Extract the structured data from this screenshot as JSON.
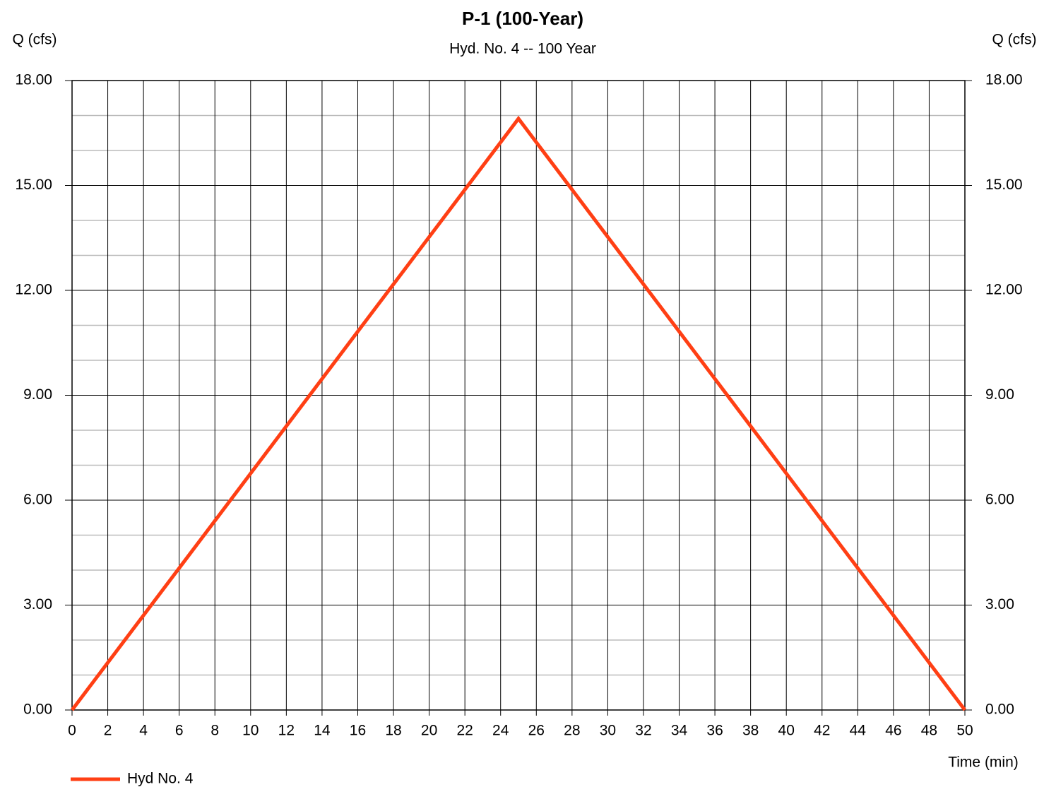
{
  "chart_data": {
    "type": "line",
    "title": "P-1 (100-Year)",
    "subtitle": "Hyd. No. 4 -- 100 Year",
    "ylabel": "Q (cfs)",
    "y2label": "Q (cfs)",
    "xlabel": "Time (min)",
    "x": [
      0,
      25,
      50
    ],
    "series": [
      {
        "name": "Hyd No. 4",
        "color": "#ff3f14",
        "values": [
          0,
          16.91,
          0
        ]
      }
    ],
    "xlim": [
      0,
      50
    ],
    "xticks": [
      0,
      2,
      4,
      6,
      8,
      10,
      12,
      14,
      16,
      18,
      20,
      22,
      24,
      26,
      28,
      30,
      32,
      34,
      36,
      38,
      40,
      42,
      44,
      46,
      48,
      50
    ],
    "ylim": [
      0,
      18
    ],
    "yticks": [
      {
        "value": 0,
        "label": "0.00"
      },
      {
        "value": 3,
        "label": "3.00"
      },
      {
        "value": 6,
        "label": "6.00"
      },
      {
        "value": 9,
        "label": "9.00"
      },
      {
        "value": 12,
        "label": "12.00"
      },
      {
        "value": 15,
        "label": "15.00"
      },
      {
        "value": 18,
        "label": "18.00"
      }
    ],
    "yminorticks": [
      1,
      2,
      4,
      5,
      7,
      8,
      10,
      11,
      13,
      14,
      16,
      17
    ],
    "y2lim": [
      0,
      18
    ],
    "y2ticks": [
      {
        "value": 0,
        "label": "0.00"
      },
      {
        "value": 3,
        "label": "3.00"
      },
      {
        "value": 6,
        "label": "6.00"
      },
      {
        "value": 9,
        "label": "9.00"
      },
      {
        "value": 12,
        "label": "12.00"
      },
      {
        "value": 15,
        "label": "15.00"
      },
      {
        "value": 18,
        "label": "18.00"
      }
    ],
    "grid": true,
    "legend": "bottom-left"
  }
}
